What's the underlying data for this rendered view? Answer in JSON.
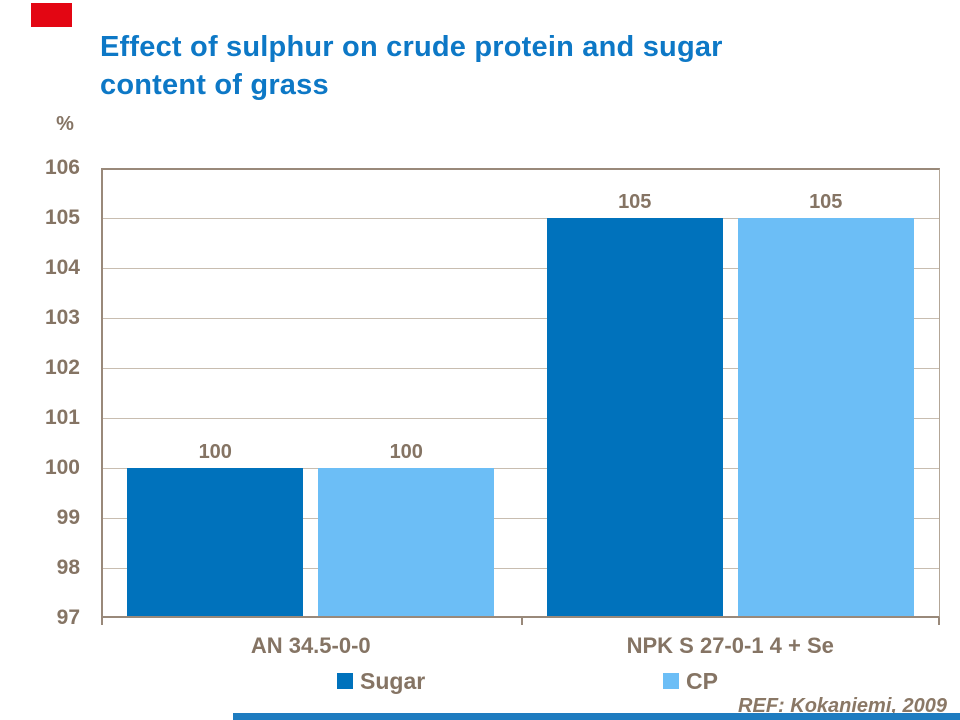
{
  "slide": {
    "title": "Effect of sulphur on crude protein and sugar content of grass",
    "ref": "REF: Kokaniemi, 2009"
  },
  "colors": {
    "title_blue": "#0d78c6",
    "sugar_blue": "#0072bc",
    "cp_blue": "#6cbef6",
    "label_brown": "#857464",
    "ref_brown": "#8a7866",
    "gridline_tan": "#c8bdb0",
    "axis_border_tan": "#99897a",
    "accent_red": "#e30613",
    "footer_bar_blue": "#1e7cc0"
  },
  "chart_data": {
    "type": "bar",
    "title": "Effect of sulphur on crude protein and sugar content of grass",
    "unit_label": "%",
    "xlabel": "",
    "ylabel": "%",
    "categories": [
      "AN 34.5-0-0",
      "NPK S 27-0-1 4 + Se"
    ],
    "series": [
      {
        "name": "Sugar",
        "color": "#0072bc",
        "values": [
          100,
          105
        ]
      },
      {
        "name": "CP",
        "color": "#6cbef6",
        "values": [
          100,
          105
        ]
      }
    ],
    "ylim": [
      97,
      106
    ],
    "yticks": [
      97,
      98,
      99,
      100,
      101,
      102,
      103,
      104,
      105,
      106
    ],
    "grid": true,
    "legend_position": "bottom"
  }
}
